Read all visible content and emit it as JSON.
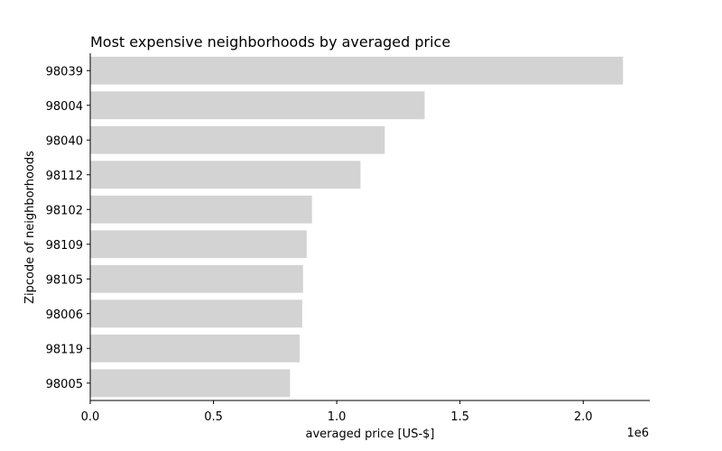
{
  "chart_data": {
    "type": "bar",
    "orientation": "horizontal",
    "title": "Most expensive neighborhoods by averaged price",
    "xlabel": "averaged price [US-$]",
    "ylabel": "Zipcode of neighborhoods",
    "x_offset_label": "1e6",
    "x_ticks": [
      0,
      500000,
      1000000,
      1500000,
      2000000
    ],
    "x_tick_labels": [
      "0.0",
      "0.5",
      "1.0",
      "1.5",
      "2.0"
    ],
    "xlim": [
      0,
      2270000
    ],
    "categories": [
      "98039",
      "98004",
      "98040",
      "98112",
      "98102",
      "98109",
      "98105",
      "98006",
      "98119",
      "98005"
    ],
    "values": [
      2161300,
      1356524,
      1194874,
      1096239,
      899608,
      877766,
      863229,
      859938,
      849715,
      810290
    ],
    "bar_color": "#d3d3d3",
    "grid": false
  }
}
